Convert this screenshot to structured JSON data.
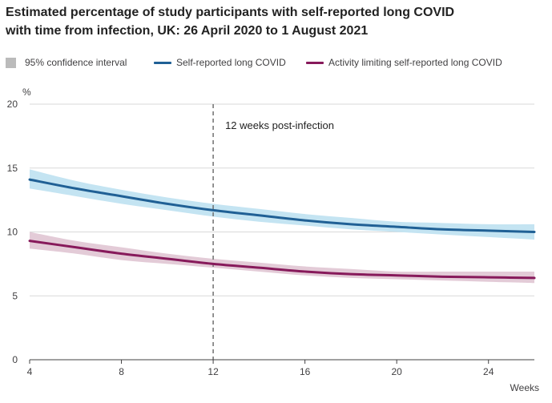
{
  "chart_data": {
    "type": "line",
    "title_lines": [
      "Estimated percentage of study participants with self-reported long COVID",
      "with time from infection, UK: 26 April 2020 to 1 August 2021"
    ],
    "ylabel": "%",
    "xlabel": "Weeks",
    "xlim": [
      4,
      26
    ],
    "ylim": [
      0,
      20
    ],
    "xticks": [
      4,
      8,
      12,
      16,
      20,
      24
    ],
    "yticks": [
      0,
      5,
      10,
      15,
      20
    ],
    "grid": "horizontal",
    "legend_position": "top",
    "legend": {
      "ci_label": "95% confidence interval",
      "ci_color": "#bbbbbb"
    },
    "annotation": {
      "x": 12,
      "label": "12 weeks post-infection",
      "color": "#707070"
    },
    "x": [
      4,
      6,
      8,
      10,
      12,
      14,
      16,
      18,
      20,
      22,
      24,
      26
    ],
    "series": [
      {
        "name": "Self-reported long COVID",
        "color": "#206095",
        "band_color": "#c4e4f2",
        "values": [
          14.1,
          13.4,
          12.8,
          12.2,
          11.7,
          11.3,
          10.9,
          10.6,
          10.4,
          10.2,
          10.1,
          10.0
        ],
        "lower": [
          13.4,
          12.8,
          12.2,
          11.7,
          11.2,
          10.8,
          10.5,
          10.2,
          10.0,
          9.8,
          9.6,
          9.4
        ],
        "upper": [
          14.9,
          14.0,
          13.3,
          12.7,
          12.2,
          11.8,
          11.4,
          11.1,
          10.8,
          10.7,
          10.6,
          10.6
        ]
      },
      {
        "name": "Activity limiting self-reported long COVID",
        "color": "#871a5b",
        "band_color": "#e3cbd7",
        "values": [
          9.3,
          8.8,
          8.3,
          7.9,
          7.5,
          7.2,
          6.9,
          6.7,
          6.6,
          6.5,
          6.45,
          6.4
        ],
        "lower": [
          8.7,
          8.3,
          7.8,
          7.5,
          7.2,
          6.9,
          6.6,
          6.4,
          6.3,
          6.2,
          6.1,
          6.0
        ],
        "upper": [
          10.0,
          9.3,
          8.8,
          8.3,
          7.9,
          7.6,
          7.3,
          7.1,
          6.9,
          6.9,
          6.9,
          6.9
        ]
      }
    ]
  }
}
